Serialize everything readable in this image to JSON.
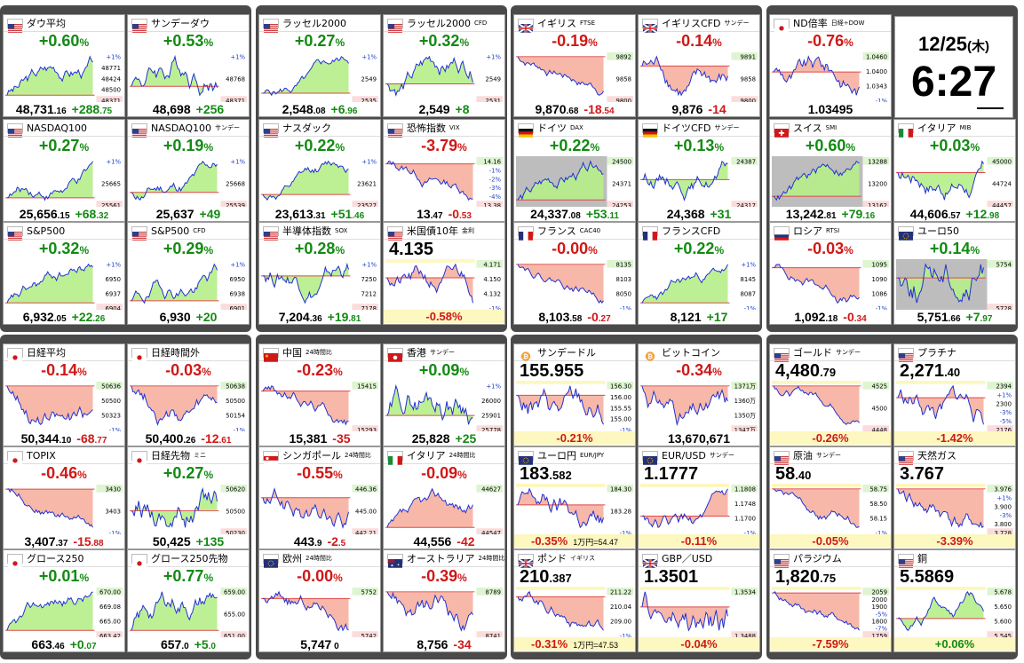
{
  "clock": {
    "date": "12/25",
    "weekday": "(木)",
    "time": "6:27"
  },
  "colors": {
    "up": "#138a13",
    "down": "#d01818",
    "up_fill": "#b6ee8a",
    "down_fill": "#f6b0a0",
    "line": "#1f2fd0",
    "ref": "#e04848"
  },
  "tiles": [
    {
      "name": "ダウ平均",
      "sub": "",
      "flag": "us",
      "chg": "+0.60",
      "suf": "%",
      "dir": "up",
      "mode": "std",
      "price": "48,731",
      "dec": ".16",
      "pc": "+288",
      "pcd": ".75",
      "labels": [
        "+1%",
        "48771",
        "48424",
        "48500",
        "48371"
      ]
    },
    {
      "name": "サンデーダウ",
      "sub": "",
      "flag": "us",
      "chg": "+0.53",
      "suf": "%",
      "dir": "up",
      "mode": "std",
      "price": "48,698",
      "dec": "",
      "pc": "+256",
      "pcd": "",
      "labels": [
        "+1%",
        "48768",
        "48371"
      ]
    },
    {
      "name": "ラッセル2000",
      "sub": "",
      "flag": "us",
      "chg": "+0.27",
      "suf": "%",
      "dir": "up",
      "mode": "std",
      "price": "2,548",
      "dec": ".08",
      "pc": "+6",
      "pcd": ".96",
      "labels": [
        "+1%",
        "2549",
        "2535"
      ]
    },
    {
      "name": "ラッセル2000",
      "sub": "CFD",
      "flag": "us",
      "chg": "+0.32",
      "suf": "%",
      "dir": "up",
      "mode": "std",
      "price": "2,549",
      "dec": "",
      "pc": "+8",
      "pcd": "",
      "labels": [
        "+1%",
        "2549",
        "2531"
      ]
    },
    {
      "name": "イギリス",
      "sub": "FTSE",
      "flag": "gb",
      "chg": "-0.19",
      "suf": "%",
      "dir": "dn",
      "mode": "std",
      "price": "9,870",
      "dec": ".68",
      "pc": "-18",
      "pcd": ".54",
      "labels": [
        "9892",
        "9858",
        "9800"
      ]
    },
    {
      "name": "イギリスCFD",
      "sub": "サンデー",
      "flag": "gb",
      "chg": "-0.14",
      "suf": "%",
      "dir": "dn",
      "mode": "std",
      "price": "9,876",
      "dec": "",
      "pc": "-14",
      "pcd": "",
      "labels": [
        "9891",
        "9858",
        "9800"
      ]
    },
    {
      "name": "ND倍率",
      "sub": "日経÷DOW",
      "flag": "jp",
      "chg": "-0.76",
      "suf": "%",
      "dir": "dn",
      "mode": "std",
      "price": "1.03495",
      "dec": "",
      "pc": "",
      "pcd": "",
      "labels": [
        "1.0460",
        "1.0400",
        "1.0343",
        "-1%"
      ]
    },
    {
      "name": "NASDAQ100",
      "sub": "",
      "flag": "us",
      "chg": "+0.27",
      "suf": "%",
      "dir": "up",
      "mode": "std",
      "price": "25,656",
      "dec": ".15",
      "pc": "+68",
      "pcd": ".32",
      "labels": [
        "+1%",
        "25665",
        "25561"
      ]
    },
    {
      "name": "NASDAQ100",
      "sub": "サンデー",
      "flag": "us",
      "chg": "+0.19",
      "suf": "%",
      "dir": "up",
      "mode": "std",
      "price": "25,637",
      "dec": "",
      "pc": "+49",
      "pcd": "",
      "labels": [
        "+1%",
        "25668",
        "25539"
      ]
    },
    {
      "name": "ナスダック",
      "sub": "",
      "flag": "us",
      "chg": "+0.22",
      "suf": "%",
      "dir": "up",
      "mode": "std",
      "price": "23,613",
      "dec": ".31",
      "pc": "+51",
      "pcd": ".46",
      "labels": [
        "+1%",
        "23621",
        "23527"
      ]
    },
    {
      "name": "恐怖指数",
      "sub": "VIX",
      "flag": "us",
      "chg": "-3.79",
      "suf": "%",
      "dir": "dn",
      "mode": "std",
      "price": "13",
      "dec": ".47",
      "pc": "-0",
      "pcd": ".53",
      "labels": [
        "14.16",
        "-1%",
        "-2%",
        "-3%",
        "-4%",
        "13.38"
      ]
    },
    {
      "name": "ドイツ",
      "sub": "DAX",
      "flag": "de",
      "chg": "+0.22",
      "suf": "%",
      "dir": "up",
      "mode": "std",
      "price": "24,337",
      "dec": ".08",
      "pc": "+53",
      "pcd": ".11",
      "labels": [
        "24500",
        "24371",
        "24253"
      ]
    },
    {
      "name": "ドイツCFD",
      "sub": "サンデー",
      "flag": "de",
      "chg": "+0.13",
      "suf": "%",
      "dir": "up",
      "mode": "std",
      "price": "24,368",
      "dec": "",
      "pc": "+31",
      "pcd": "",
      "labels": [
        "24387",
        "24317"
      ]
    },
    {
      "name": "スイス",
      "sub": "SMI",
      "flag": "ch",
      "chg": "+0.60",
      "suf": "%",
      "dir": "up",
      "mode": "std",
      "price": "13,242",
      "dec": ".81",
      "pc": "+79",
      "pcd": ".16",
      "labels": [
        "13288",
        "13200",
        "13162"
      ]
    },
    {
      "name": "イタリア",
      "sub": "MIB",
      "flag": "it",
      "chg": "+0.03",
      "suf": "%",
      "dir": "up",
      "mode": "std",
      "price": "44,606",
      "dec": ".57",
      "pc": "+12",
      "pcd": ".98",
      "labels": [
        "45000",
        "44724",
        "44457"
      ]
    },
    {
      "name": "S&P500",
      "sub": "",
      "flag": "us",
      "chg": "+0.32",
      "suf": "%",
      "dir": "up",
      "mode": "std",
      "price": "6,932",
      "dec": ".05",
      "pc": "+22",
      "pcd": ".26",
      "labels": [
        "+1%",
        "6950",
        "6937",
        "6904"
      ]
    },
    {
      "name": "S&P500",
      "sub": "CFD",
      "flag": "us",
      "chg": "+0.29",
      "suf": "%",
      "dir": "up",
      "mode": "std",
      "price": "6,930",
      "dec": "",
      "pc": "+20",
      "pcd": "",
      "labels": [
        "+1%",
        "6950",
        "6938",
        "6901"
      ]
    },
    {
      "name": "半導体指数",
      "sub": "SOX",
      "flag": "us",
      "chg": "+0.28",
      "suf": "%",
      "dir": "up",
      "mode": "std",
      "price": "7,204",
      "dec": ".36",
      "pc": "+19",
      "pcd": ".81",
      "labels": [
        "+1%",
        "7250",
        "7212",
        "7178"
      ]
    },
    {
      "name": "米国債10年",
      "sub": "金利",
      "flag": "us",
      "chg": "4.135",
      "suf": "",
      "dir": "",
      "mode": "price",
      "pchg": "-0.58%",
      "pdir": "dn",
      "labels": [
        "4.171",
        "4.150",
        "4.132",
        "-1%"
      ]
    },
    {
      "name": "フランス",
      "sub": "CAC40",
      "flag": "fr",
      "chg": "-0.00",
      "suf": "%",
      "dir": "dn",
      "mode": "std",
      "price": "8,103",
      "dec": ".58",
      "pc": "-0",
      "pcd": ".27",
      "labels": [
        "8135",
        "8103",
        "8050",
        "-1%"
      ]
    },
    {
      "name": "フランスCFD",
      "sub": "",
      "flag": "fr",
      "chg": "+0.22",
      "suf": "%",
      "dir": "up",
      "mode": "std",
      "price": "8,121",
      "dec": "",
      "pc": "+17",
      "pcd": "",
      "labels": [
        "+1%",
        "8145",
        "8087",
        "-1%"
      ]
    },
    {
      "name": "ロシア",
      "sub": "RTSI",
      "flag": "ru",
      "chg": "-0.03",
      "suf": "%",
      "dir": "dn",
      "mode": "std",
      "price": "1,092",
      "dec": ".18",
      "pc": "-0",
      "pcd": ".34",
      "labels": [
        "1095",
        "1090",
        "1086",
        "-1%"
      ]
    },
    {
      "name": "ユーロ50",
      "sub": "",
      "flag": "eu",
      "chg": "+0.14",
      "suf": "%",
      "dir": "up",
      "mode": "std",
      "price": "5,751",
      "dec": ".66",
      "pc": "+7",
      "pcd": ".97",
      "labels": [
        "5754",
        "5728"
      ]
    },
    {
      "name": "日経平均",
      "sub": "",
      "flag": "jp",
      "chg": "-0.14",
      "suf": "%",
      "dir": "dn",
      "mode": "std",
      "price": "50,344",
      "dec": ".10",
      "pc": "-68",
      "pcd": ".77",
      "labels": [
        "50636",
        "50500",
        "50323",
        "-1%"
      ]
    },
    {
      "name": "日経時間外",
      "sub": "",
      "flag": "jp",
      "chg": "-0.03",
      "suf": "%",
      "dir": "dn",
      "mode": "std",
      "price": "50,400",
      "dec": ".26",
      "pc": "-12",
      "pcd": ".61",
      "labels": [
        "50638",
        "50500",
        "50154",
        "-1%"
      ]
    },
    {
      "name": "中国",
      "sub": "24時間比",
      "flag": "cn",
      "chg": "-0.23",
      "suf": "%",
      "dir": "dn",
      "mode": "std",
      "price": "15,381",
      "dec": "",
      "pc": "-35",
      "pcd": "",
      "labels": [
        "15415",
        "15293"
      ]
    },
    {
      "name": "香港",
      "sub": "サンデー",
      "flag": "hk",
      "chg": "+0.09",
      "suf": "%",
      "dir": "up",
      "mode": "std",
      "price": "25,828",
      "dec": "",
      "pc": "+25",
      "pcd": "",
      "labels": [
        "+1%",
        "26000",
        "25901",
        "25778"
      ]
    },
    {
      "name": "サンデードル",
      "sub": "",
      "flag": "btc",
      "chg": "155.955",
      "suf": "",
      "dir": "",
      "mode": "price",
      "pchg": "-0.21%",
      "pdir": "dn",
      "labels": [
        "156.30",
        "156.00",
        "155.55",
        "155.00",
        "-1%"
      ]
    },
    {
      "name": "ビットコイン",
      "sub": "",
      "flag": "btc",
      "chg": "-0.34",
      "suf": "%",
      "dir": "dn",
      "mode": "std",
      "price": "13,670,671",
      "dec": "",
      "pc": "",
      "pcd": "",
      "labels": [
        "1371万",
        "1360万",
        "1350万",
        "1347万"
      ]
    },
    {
      "name": "ゴールド",
      "sub": "サンデー",
      "flag": "us",
      "chg": "4,480",
      "suf": ".79",
      "dir": "",
      "mode": "price",
      "pchg": "-0.26%",
      "pdir": "dn",
      "labels": [
        "4525",
        "4500",
        "4448"
      ]
    },
    {
      "name": "プラチナ",
      "sub": "",
      "flag": "us",
      "chg": "2,271",
      "suf": ".40",
      "dir": "",
      "mode": "price",
      "pchg": "-1.42%",
      "pdir": "dn",
      "labels": [
        "2394",
        "+1%",
        "2300",
        "-3%",
        "-5%",
        "2176"
      ]
    },
    {
      "name": "TOPIX",
      "sub": "",
      "flag": "jp",
      "chg": "-0.46",
      "suf": "%",
      "dir": "dn",
      "mode": "std",
      "price": "3,407",
      "dec": ".37",
      "pc": "-15",
      "pcd": ".88",
      "labels": [
        "3430",
        "3403",
        "-1%"
      ]
    },
    {
      "name": "日経先物",
      "sub": "ミニ",
      "flag": "jp",
      "chg": "+0.27",
      "suf": "%",
      "dir": "up",
      "mode": "std",
      "price": "50,425",
      "dec": "",
      "pc": "+135",
      "pcd": "",
      "labels": [
        "50620",
        "50500",
        "50230"
      ]
    },
    {
      "name": "シンガポール",
      "sub": "24時間比",
      "flag": "sg",
      "chg": "-0.55",
      "suf": "%",
      "dir": "dn",
      "mode": "std",
      "price": "443",
      "dec": ".9",
      "pc": "-2",
      "pcd": ".5",
      "labels": [
        "446.36",
        "445.00",
        "442.21"
      ]
    },
    {
      "name": "イタリア",
      "sub": "24時間比",
      "flag": "it",
      "chg": "-0.09",
      "suf": "%",
      "dir": "dn",
      "mode": "std",
      "price": "44,556",
      "dec": "",
      "pc": "-42",
      "pcd": "",
      "labels": [
        "44627",
        "44547"
      ]
    },
    {
      "name": "ユーロ円",
      "sub": "EUR/JPY",
      "flag": "eu",
      "chg": "183",
      "suf": ".582",
      "dir": "",
      "mode": "price",
      "pchg": "-0.35%",
      "pdir": "dn",
      "extra": "1万円=54.47",
      "labels": [
        "184.30",
        "183.28",
        "-1%"
      ]
    },
    {
      "name": "EUR/USD",
      "sub": "サンデー",
      "flag": "eu",
      "chg": "1.1777",
      "suf": "",
      "dir": "",
      "mode": "price",
      "pchg": "-0.11%",
      "pdir": "dn",
      "labels": [
        "1.1808",
        "1.1748",
        "1.1700",
        "-1%"
      ]
    },
    {
      "name": "原油",
      "sub": "サンデー",
      "flag": "us",
      "chg": "58",
      "suf": ".40",
      "dir": "",
      "mode": "price",
      "pchg": "-0.05%",
      "pdir": "dn",
      "labels": [
        "58.75",
        "58.50",
        "58.15",
        "-1%"
      ]
    },
    {
      "name": "天然ガス",
      "sub": "",
      "flag": "us",
      "chg": "3.767",
      "suf": "",
      "dir": "",
      "mode": "price",
      "pchg": "-3.39%",
      "pdir": "dn",
      "labels": [
        "3.976",
        "+1%",
        "3.900",
        "-3%",
        "3.800",
        "3.728"
      ]
    },
    {
      "name": "グロース250",
      "sub": "",
      "flag": "jp",
      "chg": "+0.01",
      "suf": "%",
      "dir": "up",
      "mode": "std",
      "price": "663",
      "dec": ".46",
      "pc": "+0",
      "pcd": ".07",
      "labels": [
        "670.00",
        "669.08",
        "665.00",
        "663.42"
      ]
    },
    {
      "name": "グロース250先物",
      "sub": "",
      "flag": "jp",
      "chg": "+0.77",
      "suf": "%",
      "dir": "up",
      "mode": "std",
      "price": "657",
      "dec": ".0",
      "pc": "+5",
      "pcd": ".0",
      "labels": [
        "659.00",
        "655.00",
        "651.00"
      ]
    },
    {
      "name": "欧州",
      "sub": "24時間比",
      "flag": "eu",
      "chg": "-0.00",
      "suf": "%",
      "dir": "dn",
      "mode": "std",
      "price": "5,747",
      "dec": " 0",
      "pc": "",
      "pcd": "",
      "labels": [
        "5752",
        "5742"
      ]
    },
    {
      "name": "オーストラリア",
      "sub": "24時間比",
      "flag": "au",
      "chg": "-0.39",
      "suf": "%",
      "dir": "dn",
      "mode": "std",
      "price": "8,756",
      "dec": "",
      "pc": "-34",
      "pcd": "",
      "labels": [
        "8789",
        "8741"
      ]
    },
    {
      "name": "ポンド",
      "sub": "イギリス",
      "flag": "gb",
      "chg": "210",
      "suf": ".387",
      "dir": "",
      "mode": "price",
      "pchg": "-0.31%",
      "pdir": "dn",
      "extra": "1万円=47.53",
      "labels": [
        "211.22",
        "210.04",
        "209.00",
        "-1%"
      ]
    },
    {
      "name": "GBP／USD",
      "sub": "",
      "flag": "gb",
      "chg": "1.3501",
      "suf": "",
      "dir": "",
      "mode": "price",
      "pchg": "-0.04%",
      "pdir": "dn",
      "labels": [
        "1.3534",
        "1.3488"
      ]
    },
    {
      "name": "パラジウム",
      "sub": "",
      "flag": "us",
      "chg": "1,820",
      "suf": ".75",
      "dir": "",
      "mode": "price",
      "pchg": "-7.59%",
      "pdir": "dn",
      "labels": [
        "2059",
        "2000",
        "1900",
        "-5%",
        "1800",
        "-7%",
        "1759"
      ]
    },
    {
      "name": "銅",
      "sub": "",
      "flag": "us",
      "chg": "5.5869",
      "suf": "",
      "dir": "",
      "mode": "price",
      "pchg": "+0.06%",
      "pdir": "up",
      "labels": [
        "5.678",
        "5.650",
        "5.600",
        "5.545"
      ]
    }
  ]
}
